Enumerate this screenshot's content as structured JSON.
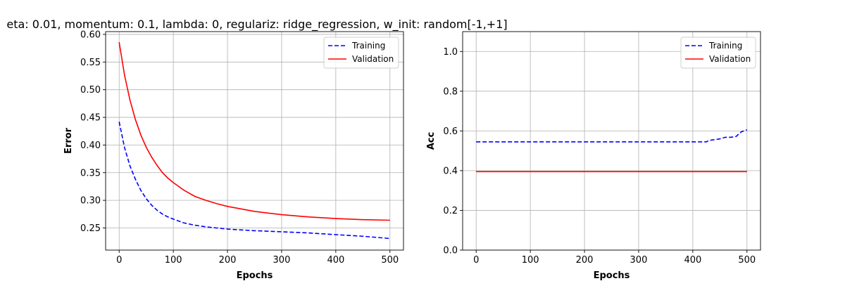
{
  "figure_title": "eta: 0.01, momentum: 0.1, lambda: 0, regulariz: ridge_regression, w_init: random[-1,+1]",
  "chart_data": [
    {
      "type": "line",
      "title": "",
      "xlabel": "Epochs",
      "ylabel": "Error",
      "xlim": [
        -25,
        525
      ],
      "ylim": [
        0.21,
        0.605
      ],
      "xticks": [
        0,
        100,
        200,
        300,
        400,
        500
      ],
      "yticks": [
        0.25,
        0.3,
        0.35,
        0.4,
        0.45,
        0.5,
        0.55,
        0.6
      ],
      "ytick_labels": [
        "0.25",
        "0.30",
        "0.35",
        "0.40",
        "0.45",
        "0.50",
        "0.55",
        "0.60"
      ],
      "grid": true,
      "legend": "upper right",
      "x": [
        0,
        10,
        20,
        30,
        40,
        50,
        60,
        70,
        80,
        90,
        100,
        120,
        140,
        160,
        180,
        200,
        250,
        300,
        350,
        400,
        450,
        500
      ],
      "series": [
        {
          "name": "Training",
          "color": "#0000ff",
          "linestyle": "dashed",
          "values": [
            0.442,
            0.395,
            0.362,
            0.338,
            0.318,
            0.303,
            0.291,
            0.282,
            0.275,
            0.27,
            0.266,
            0.259,
            0.255,
            0.252,
            0.25,
            0.248,
            0.245,
            0.243,
            0.241,
            0.238,
            0.235,
            0.231
          ]
        },
        {
          "name": "Validation",
          "color": "#ff0000",
          "linestyle": "solid",
          "values": [
            0.586,
            0.526,
            0.481,
            0.446,
            0.418,
            0.396,
            0.378,
            0.363,
            0.35,
            0.34,
            0.332,
            0.318,
            0.307,
            0.3,
            0.294,
            0.289,
            0.28,
            0.274,
            0.27,
            0.267,
            0.265,
            0.264
          ]
        }
      ]
    },
    {
      "type": "line",
      "title": "",
      "xlabel": "Epochs",
      "ylabel": "Acc",
      "xlim": [
        -25,
        525
      ],
      "ylim": [
        0.0,
        1.1
      ],
      "xticks": [
        0,
        100,
        200,
        300,
        400,
        500
      ],
      "yticks": [
        0.0,
        0.2,
        0.4,
        0.6,
        0.8,
        1.0
      ],
      "ytick_labels": [
        "0.0",
        "0.2",
        "0.4",
        "0.6",
        "0.8",
        "1.0"
      ],
      "grid": true,
      "legend": "upper right",
      "x": [
        0,
        100,
        200,
        300,
        400,
        425,
        430,
        440,
        450,
        460,
        470,
        480,
        485,
        490,
        500
      ],
      "series": [
        {
          "name": "Training",
          "color": "#0000ff",
          "linestyle": "dashed",
          "values": [
            0.545,
            0.545,
            0.545,
            0.545,
            0.545,
            0.545,
            0.552,
            0.556,
            0.56,
            0.568,
            0.568,
            0.572,
            0.585,
            0.596,
            0.606
          ]
        },
        {
          "name": "Validation",
          "color": "#ff0000",
          "linestyle": "solid",
          "values": [
            0.395,
            0.395,
            0.395,
            0.395,
            0.395,
            0.395,
            0.395,
            0.395,
            0.395,
            0.395,
            0.395,
            0.395,
            0.395,
            0.395,
            0.395
          ]
        }
      ]
    }
  ]
}
